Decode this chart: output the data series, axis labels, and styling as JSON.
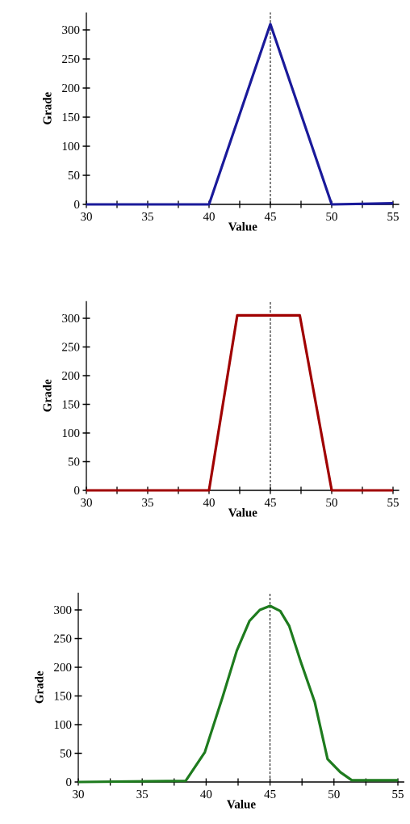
{
  "chart_data": [
    {
      "type": "line",
      "xlabel": "Value",
      "ylabel": "Grade",
      "x": [
        30,
        40,
        45,
        50,
        55
      ],
      "values": [
        0,
        0,
        310,
        0,
        2
      ],
      "color": "#1a1a9a",
      "xlim": [
        30,
        55.5
      ],
      "ylim": [
        0,
        330
      ],
      "xticks": [
        30,
        {
          "value": 32.5,
          "label": null
        },
        35,
        {
          "value": 37.5,
          "label": null
        },
        40,
        {
          "value": 42.5,
          "label": null
        },
        45,
        {
          "value": 47.5,
          "label": null
        },
        50,
        {
          "value": 52.5,
          "label": null
        },
        55
      ],
      "yticks": [
        0,
        50,
        100,
        150,
        200,
        250,
        300
      ],
      "ref_lines": [
        {
          "axis": "x",
          "value": 45,
          "color": "#000000",
          "line_style": "dashed"
        }
      ]
    },
    {
      "type": "line",
      "xlabel": "Value",
      "ylabel": "Grade",
      "x": [
        30,
        40,
        42.3,
        47.4,
        50,
        55
      ],
      "values": [
        0,
        0,
        305,
        305,
        0,
        0
      ],
      "color": "#a00000",
      "xlim": [
        30,
        55.5
      ],
      "ylim": [
        0,
        330
      ],
      "xticks": [
        30,
        {
          "value": 32.5,
          "label": null
        },
        35,
        {
          "value": 37.5,
          "label": null
        },
        40,
        {
          "value": 42.5,
          "label": null
        },
        45,
        {
          "value": 47.5,
          "label": null
        },
        50,
        {
          "value": 52.5,
          "label": null
        },
        55
      ],
      "yticks": [
        0,
        50,
        100,
        150,
        200,
        250,
        300
      ],
      "ref_lines": [
        {
          "axis": "x",
          "value": 45,
          "color": "#000000",
          "line_style": "dashed"
        }
      ]
    },
    {
      "type": "line",
      "xlabel": "Value",
      "ylabel": "Grade",
      "x": [
        30,
        38.4,
        39.9,
        41.3,
        42.4,
        43.4,
        44.2,
        45,
        45.8,
        46.5,
        47.4,
        48.5,
        49.5,
        50.5,
        51.4,
        55
      ],
      "values": [
        0,
        2,
        52,
        149,
        229,
        281,
        300,
        307,
        298,
        272,
        210,
        139,
        40,
        17,
        3,
        3
      ],
      "color": "#1e7b1e",
      "xlim": [
        30,
        55.5
      ],
      "ylim": [
        0,
        330
      ],
      "xticks": [
        30,
        {
          "value": 32.5,
          "label": null
        },
        35,
        {
          "value": 37.5,
          "label": null
        },
        40,
        {
          "value": 42.5,
          "label": null
        },
        45,
        {
          "value": 47.5,
          "label": null
        },
        50,
        {
          "value": 52.5,
          "label": null
        },
        55
      ],
      "yticks": [
        0,
        50,
        100,
        150,
        200,
        250,
        300
      ],
      "ref_lines": [
        {
          "axis": "x",
          "value": 45,
          "color": "#000000",
          "line_style": "dashed"
        }
      ]
    }
  ]
}
